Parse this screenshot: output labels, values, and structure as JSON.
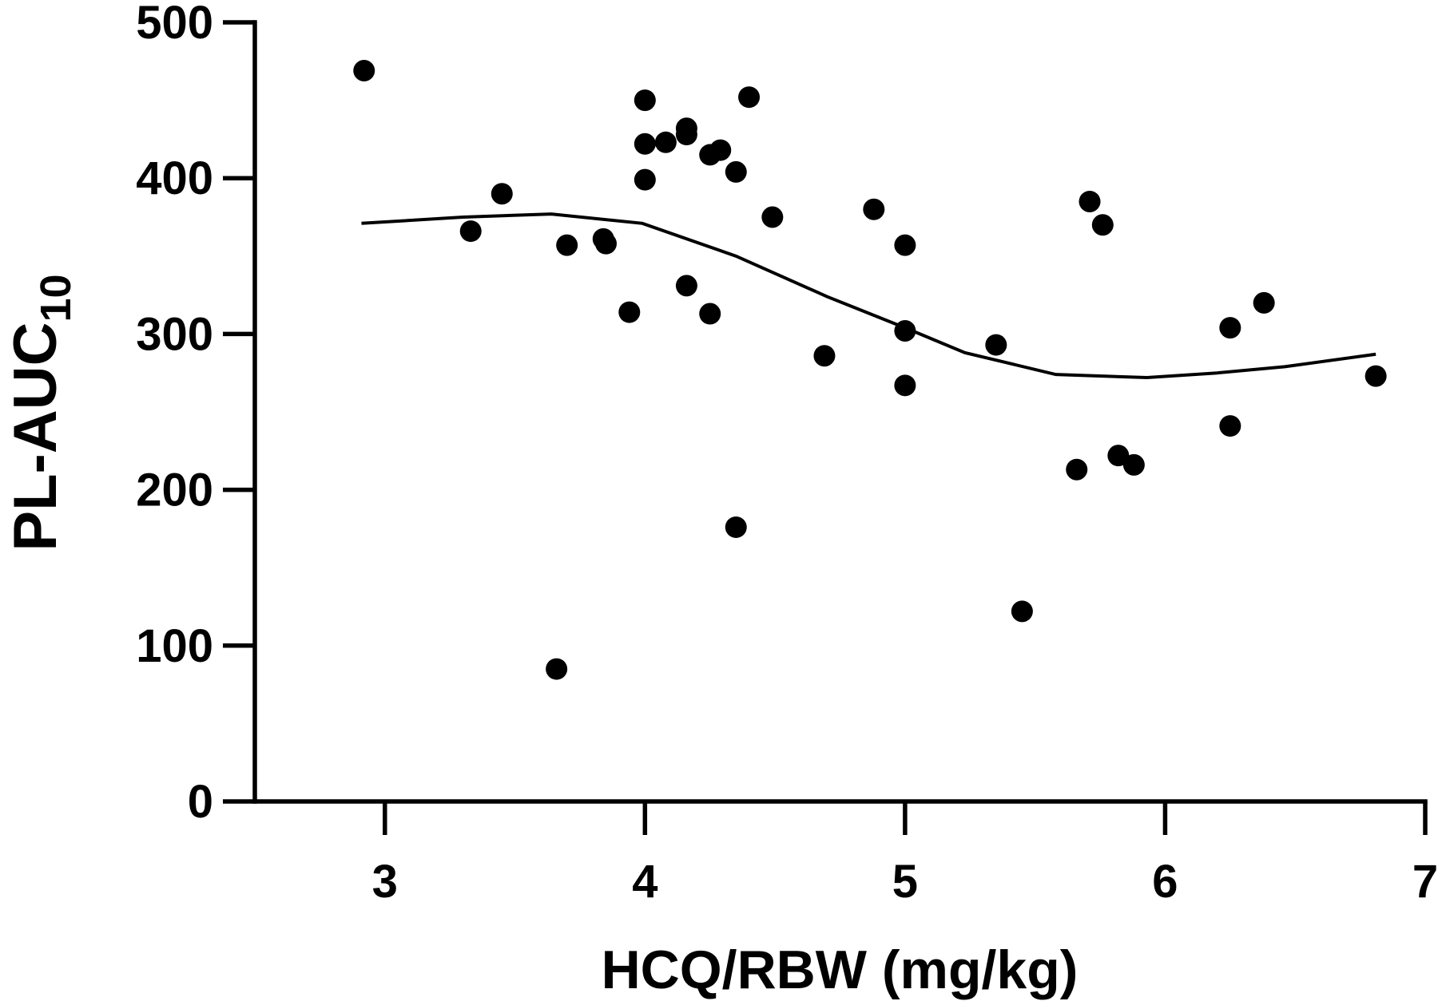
{
  "chart_data": {
    "type": "scatter",
    "x_label": "HCQ/RBW (mg/kg)",
    "y_label": "PL-AUC",
    "y_label_subscript": "10",
    "color": "#000000",
    "xlim": [
      2.5,
      7
    ],
    "xticks": [
      3,
      4,
      5,
      6,
      7
    ],
    "ylim": [
      0,
      500
    ],
    "yticks": [
      0,
      100,
      200,
      300,
      400,
      500
    ],
    "grid": false,
    "series": [
      {
        "x": [
          2.92,
          3.33,
          3.45,
          3.66,
          3.7,
          3.84,
          3.85,
          3.94,
          4.0,
          4.0,
          4.0,
          4.08,
          4.16,
          4.16,
          4.16,
          4.25,
          4.29,
          4.25,
          4.35,
          4.35,
          4.4,
          4.49,
          4.69,
          4.88,
          5.0,
          5.0,
          5.0,
          5.35,
          5.45,
          5.66,
          5.71,
          5.76,
          5.82,
          5.88,
          6.25,
          6.25,
          6.38,
          6.81
        ],
        "values": [
          469,
          366,
          390,
          85,
          357,
          361,
          358,
          314,
          450,
          422,
          399,
          423,
          432,
          428,
          331,
          415,
          418,
          313,
          404,
          176,
          452,
          375,
          286,
          380,
          357,
          302,
          267,
          293,
          122,
          213,
          385,
          370,
          222,
          216,
          304,
          241,
          320,
          273
        ]
      }
    ],
    "fit": {
      "x": [
        2.91,
        3.3,
        3.64,
        3.99,
        4.35,
        4.7,
        5.0,
        5.23,
        5.58,
        5.93,
        6.2,
        6.46,
        6.81
      ],
      "values": [
        371,
        375,
        377,
        371,
        350,
        324,
        304,
        288,
        274,
        272,
        275,
        279,
        287
      ]
    }
  }
}
